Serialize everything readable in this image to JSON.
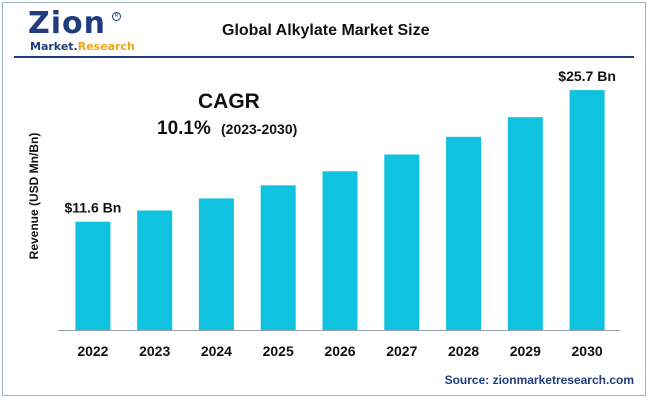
{
  "brand": {
    "logo_word": "Zion",
    "logo_sub_1": "Market.",
    "logo_sub_2": "Research"
  },
  "header": {
    "title": "Global Alkylate Market Size"
  },
  "cagr": {
    "label": "CAGR",
    "value": "10.1%",
    "period": "(2023-2030)"
  },
  "source": "Source: zionmarketresearch.com",
  "colors": {
    "bar": "#0fc2df",
    "brand_navy": "#1f3d7a",
    "brand_orange": "#f2a516"
  },
  "chart_data": {
    "type": "bar",
    "title": "Global Alkylate Market Size",
    "xlabel": "",
    "ylabel": "Revenue (USD Mn/Bn)",
    "categories": [
      "2022",
      "2023",
      "2024",
      "2025",
      "2026",
      "2027",
      "2028",
      "2029",
      "2030"
    ],
    "values": [
      11.6,
      12.8,
      14.1,
      15.5,
      17.0,
      18.8,
      20.7,
      22.8,
      25.7
    ],
    "data_labels": [
      {
        "index": 0,
        "text": "$11.6 Bn"
      },
      {
        "index": 8,
        "text": "$25.7 Bn"
      }
    ],
    "ylim": [
      0,
      30
    ],
    "grid": false,
    "unit": "USD Bn"
  }
}
